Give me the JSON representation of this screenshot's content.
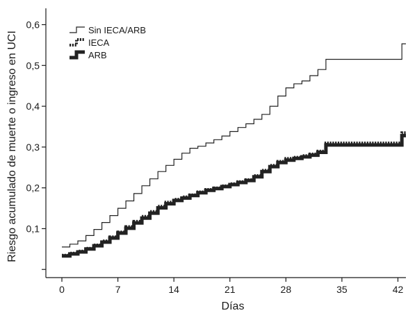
{
  "chart_data": {
    "type": "line",
    "xlabel": "Días",
    "ylabel": "Riesgo acumulado de muerte o ingreso en UCI",
    "xlim": [
      -2,
      43
    ],
    "ylim": [
      -0.02,
      0.64
    ],
    "x_ticks": [
      0,
      7,
      14,
      21,
      28,
      35,
      42
    ],
    "y_ticks": [
      0.1,
      0.2,
      0.3,
      0.4,
      0.5,
      0.6
    ],
    "y_tick_labels": [
      "0,1",
      "0,2",
      "0,3",
      "0,4",
      "0,5",
      "0,6"
    ],
    "legend_position": "top-left",
    "step": true,
    "series": [
      {
        "name": "Sin IECA/ARB",
        "style": "thin-solid",
        "color": "#222222",
        "points": [
          [
            0,
            0.055
          ],
          [
            1,
            0.062
          ],
          [
            2,
            0.07
          ],
          [
            3,
            0.083
          ],
          [
            4,
            0.098
          ],
          [
            5,
            0.115
          ],
          [
            6,
            0.132
          ],
          [
            7,
            0.15
          ],
          [
            8,
            0.168
          ],
          [
            9,
            0.186
          ],
          [
            10,
            0.205
          ],
          [
            11,
            0.222
          ],
          [
            12,
            0.24
          ],
          [
            13,
            0.255
          ],
          [
            14,
            0.27
          ],
          [
            15,
            0.285
          ],
          [
            16,
            0.297
          ],
          [
            17,
            0.302
          ],
          [
            18,
            0.31
          ],
          [
            19,
            0.318
          ],
          [
            20,
            0.327
          ],
          [
            21,
            0.338
          ],
          [
            22,
            0.348
          ],
          [
            23,
            0.357
          ],
          [
            24,
            0.368
          ],
          [
            25,
            0.38
          ],
          [
            26,
            0.4
          ],
          [
            27,
            0.425
          ],
          [
            28,
            0.445
          ],
          [
            29,
            0.455
          ],
          [
            30,
            0.462
          ],
          [
            31,
            0.475
          ],
          [
            32,
            0.49
          ],
          [
            33,
            0.515
          ],
          [
            42,
            0.515
          ],
          [
            42.5,
            0.553
          ],
          [
            43,
            0.553
          ]
        ]
      },
      {
        "name": "IECA",
        "style": "dotted",
        "color": "#222222",
        "points": [
          [
            0,
            0.035
          ],
          [
            1,
            0.04
          ],
          [
            2,
            0.045
          ],
          [
            3,
            0.052
          ],
          [
            4,
            0.06
          ],
          [
            5,
            0.07
          ],
          [
            6,
            0.08
          ],
          [
            7,
            0.092
          ],
          [
            8,
            0.105
          ],
          [
            9,
            0.118
          ],
          [
            10,
            0.13
          ],
          [
            11,
            0.142
          ],
          [
            12,
            0.155
          ],
          [
            13,
            0.165
          ],
          [
            14,
            0.172
          ],
          [
            15,
            0.178
          ],
          [
            16,
            0.183
          ],
          [
            17,
            0.19
          ],
          [
            18,
            0.196
          ],
          [
            19,
            0.2
          ],
          [
            20,
            0.205
          ],
          [
            21,
            0.21
          ],
          [
            22,
            0.215
          ],
          [
            23,
            0.22
          ],
          [
            24,
            0.23
          ],
          [
            25,
            0.243
          ],
          [
            26,
            0.255
          ],
          [
            27,
            0.265
          ],
          [
            28,
            0.272
          ],
          [
            29,
            0.275
          ],
          [
            30,
            0.279
          ],
          [
            31,
            0.283
          ],
          [
            32,
            0.29
          ],
          [
            33,
            0.31
          ],
          [
            42,
            0.31
          ],
          [
            42.5,
            0.335
          ],
          [
            43,
            0.335
          ]
        ]
      },
      {
        "name": "ARB",
        "style": "thick-solid",
        "color": "#222222",
        "points": [
          [
            0,
            0.033
          ],
          [
            1,
            0.038
          ],
          [
            2,
            0.043
          ],
          [
            3,
            0.05
          ],
          [
            4,
            0.058
          ],
          [
            5,
            0.067
          ],
          [
            6,
            0.077
          ],
          [
            7,
            0.089
          ],
          [
            8,
            0.101
          ],
          [
            9,
            0.114
          ],
          [
            10,
            0.126
          ],
          [
            11,
            0.138
          ],
          [
            12,
            0.151
          ],
          [
            13,
            0.161
          ],
          [
            14,
            0.169
          ],
          [
            15,
            0.175
          ],
          [
            16,
            0.181
          ],
          [
            17,
            0.188
          ],
          [
            18,
            0.194
          ],
          [
            19,
            0.198
          ],
          [
            20,
            0.203
          ],
          [
            21,
            0.208
          ],
          [
            22,
            0.213
          ],
          [
            23,
            0.218
          ],
          [
            24,
            0.227
          ],
          [
            25,
            0.24
          ],
          [
            26,
            0.252
          ],
          [
            27,
            0.262
          ],
          [
            28,
            0.268
          ],
          [
            29,
            0.272
          ],
          [
            30,
            0.276
          ],
          [
            31,
            0.28
          ],
          [
            32,
            0.287
          ],
          [
            33,
            0.305
          ],
          [
            42,
            0.305
          ],
          [
            42.5,
            0.328
          ],
          [
            43,
            0.328
          ]
        ]
      }
    ]
  }
}
